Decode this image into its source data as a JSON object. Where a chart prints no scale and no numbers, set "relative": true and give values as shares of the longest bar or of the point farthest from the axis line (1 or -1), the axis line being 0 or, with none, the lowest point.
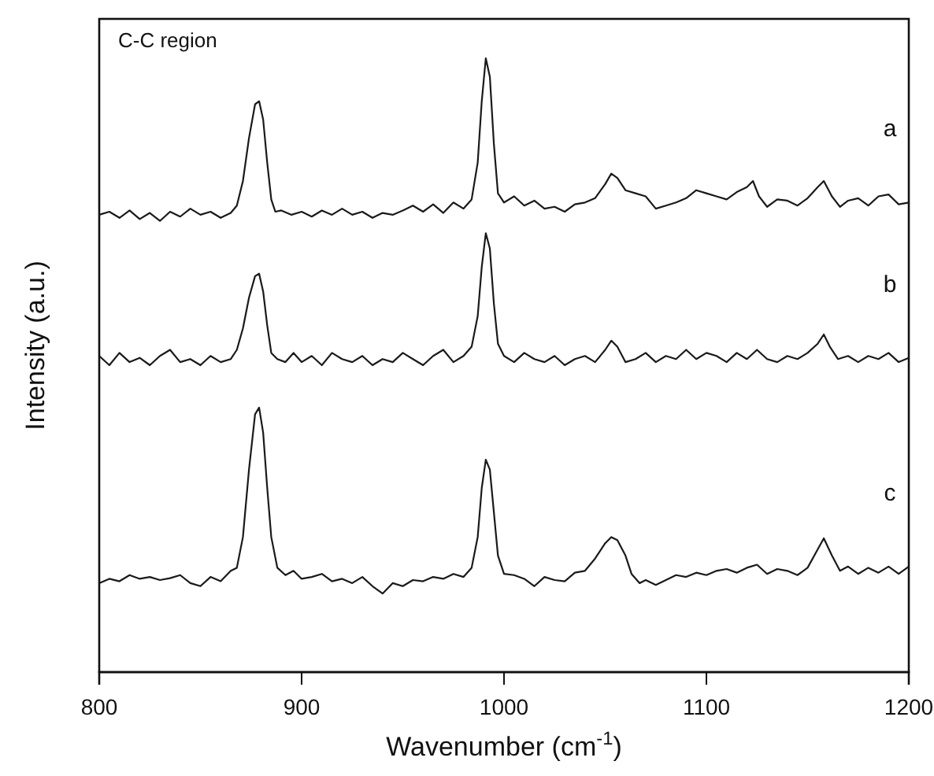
{
  "chart_data": {
    "type": "line",
    "relative": true,
    "xlabel": "Wavenumber (cm$^{-1}$)",
    "ylabel": "Intensity (a.u.)",
    "annotations": [
      "C-C region"
    ],
    "xlim": [
      800,
      1200
    ],
    "xticks": [
      800,
      900,
      1000,
      1100,
      1200
    ],
    "grid": false,
    "series": [
      {
        "name": "a",
        "color": "#1a1a1a",
        "x": [
          800,
          805,
          810,
          815,
          820,
          825,
          830,
          835,
          840,
          845,
          850,
          855,
          860,
          865,
          868,
          871,
          874,
          877,
          879,
          881,
          883,
          885,
          887,
          890,
          895,
          900,
          905,
          910,
          915,
          920,
          925,
          930,
          935,
          940,
          945,
          950,
          955,
          960,
          965,
          970,
          975,
          980,
          984,
          987,
          989,
          991,
          993,
          995,
          997,
          1000,
          1005,
          1010,
          1015,
          1020,
          1025,
          1030,
          1035,
          1040,
          1045,
          1050,
          1053,
          1056,
          1060,
          1065,
          1070,
          1075,
          1080,
          1085,
          1090,
          1095,
          1100,
          1105,
          1110,
          1115,
          1120,
          1123,
          1126,
          1130,
          1135,
          1140,
          1145,
          1150,
          1155,
          1158,
          1162,
          1166,
          1170,
          1175,
          1180,
          1185,
          1190,
          1195,
          1200
        ],
        "values": [
          0.745,
          0.75,
          0.74,
          0.752,
          0.738,
          0.748,
          0.735,
          0.75,
          0.742,
          0.755,
          0.745,
          0.75,
          0.74,
          0.748,
          0.76,
          0.8,
          0.87,
          0.925,
          0.93,
          0.9,
          0.83,
          0.77,
          0.75,
          0.752,
          0.745,
          0.75,
          0.742,
          0.752,
          0.745,
          0.755,
          0.745,
          0.75,
          0.74,
          0.748,
          0.745,
          0.752,
          0.76,
          0.75,
          0.762,
          0.748,
          0.765,
          0.755,
          0.77,
          0.83,
          0.93,
          1.0,
          0.97,
          0.86,
          0.78,
          0.765,
          0.775,
          0.76,
          0.768,
          0.755,
          0.758,
          0.75,
          0.762,
          0.765,
          0.772,
          0.795,
          0.812,
          0.805,
          0.785,
          0.78,
          0.775,
          0.755,
          0.76,
          0.765,
          0.772,
          0.785,
          0.78,
          0.775,
          0.77,
          0.782,
          0.79,
          0.8,
          0.775,
          0.758,
          0.77,
          0.768,
          0.76,
          0.772,
          0.79,
          0.8,
          0.775,
          0.758,
          0.768,
          0.772,
          0.76,
          0.775,
          0.778,
          0.762,
          0.765
        ]
      },
      {
        "name": "b",
        "color": "#1a1a1a",
        "x": [
          800,
          805,
          810,
          815,
          820,
          825,
          830,
          835,
          840,
          845,
          850,
          855,
          860,
          865,
          868,
          871,
          874,
          877,
          879,
          881,
          883,
          885,
          888,
          892,
          896,
          900,
          905,
          910,
          915,
          920,
          925,
          930,
          935,
          940,
          945,
          950,
          955,
          960,
          965,
          970,
          975,
          980,
          984,
          987,
          989,
          991,
          993,
          995,
          997,
          1000,
          1005,
          1010,
          1015,
          1020,
          1025,
          1030,
          1035,
          1040,
          1045,
          1050,
          1053,
          1056,
          1060,
          1065,
          1070,
          1075,
          1080,
          1085,
          1090,
          1095,
          1100,
          1105,
          1110,
          1115,
          1120,
          1125,
          1130,
          1135,
          1140,
          1145,
          1150,
          1155,
          1158,
          1161,
          1165,
          1170,
          1175,
          1180,
          1185,
          1190,
          1195,
          1200
        ],
        "values": [
          0.515,
          0.5,
          0.52,
          0.505,
          0.512,
          0.5,
          0.515,
          0.525,
          0.505,
          0.51,
          0.5,
          0.515,
          0.505,
          0.51,
          0.525,
          0.56,
          0.61,
          0.645,
          0.649,
          0.62,
          0.565,
          0.52,
          0.51,
          0.505,
          0.52,
          0.505,
          0.515,
          0.5,
          0.52,
          0.51,
          0.505,
          0.515,
          0.5,
          0.51,
          0.505,
          0.52,
          0.51,
          0.5,
          0.515,
          0.525,
          0.505,
          0.515,
          0.53,
          0.58,
          0.66,
          0.715,
          0.69,
          0.6,
          0.535,
          0.515,
          0.505,
          0.52,
          0.51,
          0.505,
          0.515,
          0.5,
          0.51,
          0.515,
          0.505,
          0.525,
          0.54,
          0.53,
          0.505,
          0.51,
          0.52,
          0.505,
          0.515,
          0.51,
          0.525,
          0.51,
          0.52,
          0.515,
          0.505,
          0.52,
          0.51,
          0.525,
          0.51,
          0.505,
          0.515,
          0.51,
          0.52,
          0.535,
          0.55,
          0.53,
          0.51,
          0.515,
          0.505,
          0.515,
          0.51,
          0.52,
          0.505,
          0.512
        ]
      },
      {
        "name": "c",
        "color": "#1a1a1a",
        "x": [
          800,
          805,
          810,
          815,
          820,
          825,
          830,
          835,
          840,
          845,
          850,
          855,
          860,
          865,
          868,
          871,
          874,
          877,
          879,
          881,
          883,
          885,
          888,
          892,
          896,
          900,
          905,
          910,
          915,
          920,
          925,
          930,
          935,
          940,
          945,
          950,
          955,
          960,
          965,
          970,
          975,
          980,
          984,
          987,
          989,
          991,
          993,
          995,
          997,
          1000,
          1005,
          1010,
          1015,
          1020,
          1025,
          1030,
          1035,
          1040,
          1045,
          1050,
          1053,
          1056,
          1060,
          1063,
          1067,
          1070,
          1075,
          1080,
          1085,
          1090,
          1095,
          1100,
          1105,
          1110,
          1115,
          1120,
          1125,
          1130,
          1135,
          1140,
          1145,
          1150,
          1155,
          1158,
          1162,
          1166,
          1170,
          1175,
          1180,
          1185,
          1190,
          1195,
          1200
        ],
        "values": [
          0.145,
          0.152,
          0.148,
          0.158,
          0.152,
          0.155,
          0.15,
          0.153,
          0.158,
          0.145,
          0.14,
          0.155,
          0.148,
          0.165,
          0.17,
          0.22,
          0.33,
          0.42,
          0.431,
          0.39,
          0.3,
          0.22,
          0.17,
          0.158,
          0.165,
          0.152,
          0.155,
          0.16,
          0.148,
          0.152,
          0.145,
          0.155,
          0.14,
          0.128,
          0.145,
          0.14,
          0.15,
          0.148,
          0.155,
          0.152,
          0.16,
          0.155,
          0.17,
          0.22,
          0.3,
          0.346,
          0.33,
          0.26,
          0.19,
          0.16,
          0.158,
          0.152,
          0.14,
          0.155,
          0.15,
          0.148,
          0.162,
          0.165,
          0.185,
          0.21,
          0.22,
          0.215,
          0.19,
          0.16,
          0.145,
          0.15,
          0.142,
          0.15,
          0.158,
          0.155,
          0.162,
          0.158,
          0.165,
          0.168,
          0.162,
          0.17,
          0.175,
          0.16,
          0.168,
          0.165,
          0.158,
          0.17,
          0.2,
          0.218,
          0.19,
          0.165,
          0.172,
          0.16,
          0.17,
          0.162,
          0.172,
          0.16,
          0.172
        ]
      }
    ]
  }
}
